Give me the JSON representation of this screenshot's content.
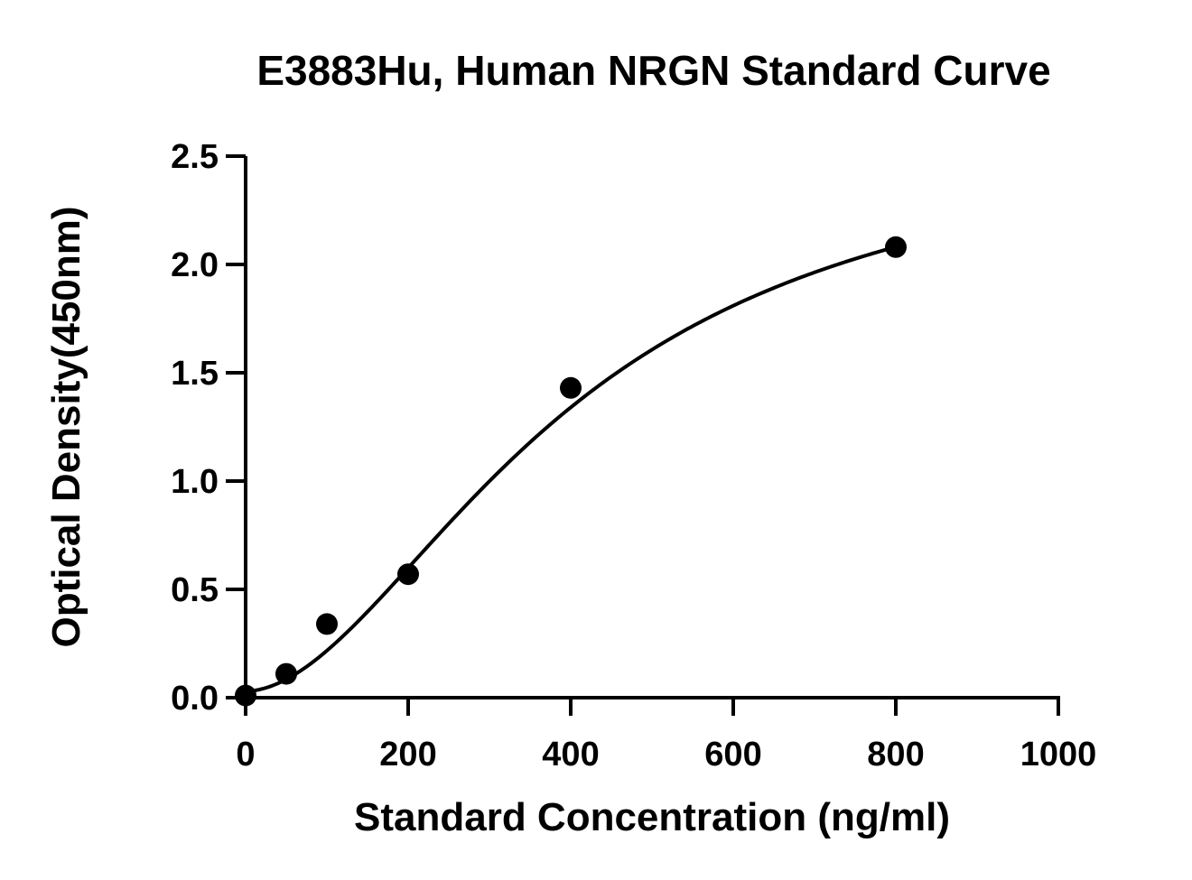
{
  "chart_data": {
    "type": "scatter",
    "title": "E3883Hu, Human NRGN Standard Curve",
    "xlabel": "Standard Concentration (ng/ml)",
    "ylabel": "Optical Density(450nm)",
    "xlim": [
      0,
      1000
    ],
    "ylim": [
      0,
      2.5
    ],
    "x_ticks": [
      "0",
      "200",
      "400",
      "600",
      "800",
      "1000"
    ],
    "y_ticks": [
      "0.0",
      "0.5",
      "1.0",
      "1.5",
      "2.0",
      "2.5"
    ],
    "grid": false,
    "series": [
      {
        "points": [
          {
            "x": 0,
            "y": 0.01
          },
          {
            "x": 50,
            "y": 0.11
          },
          {
            "x": 100,
            "y": 0.34
          },
          {
            "x": 200,
            "y": 0.57
          },
          {
            "x": 400,
            "y": 1.43
          },
          {
            "x": 800,
            "y": 2.08
          }
        ],
        "fit": "4PL",
        "fit_params": {
          "bottom": 0.03,
          "top": 2.65,
          "ec50": 400,
          "hill": 1.85
        }
      }
    ],
    "colors": {
      "marker": "#000000",
      "line": "#000000"
    }
  }
}
